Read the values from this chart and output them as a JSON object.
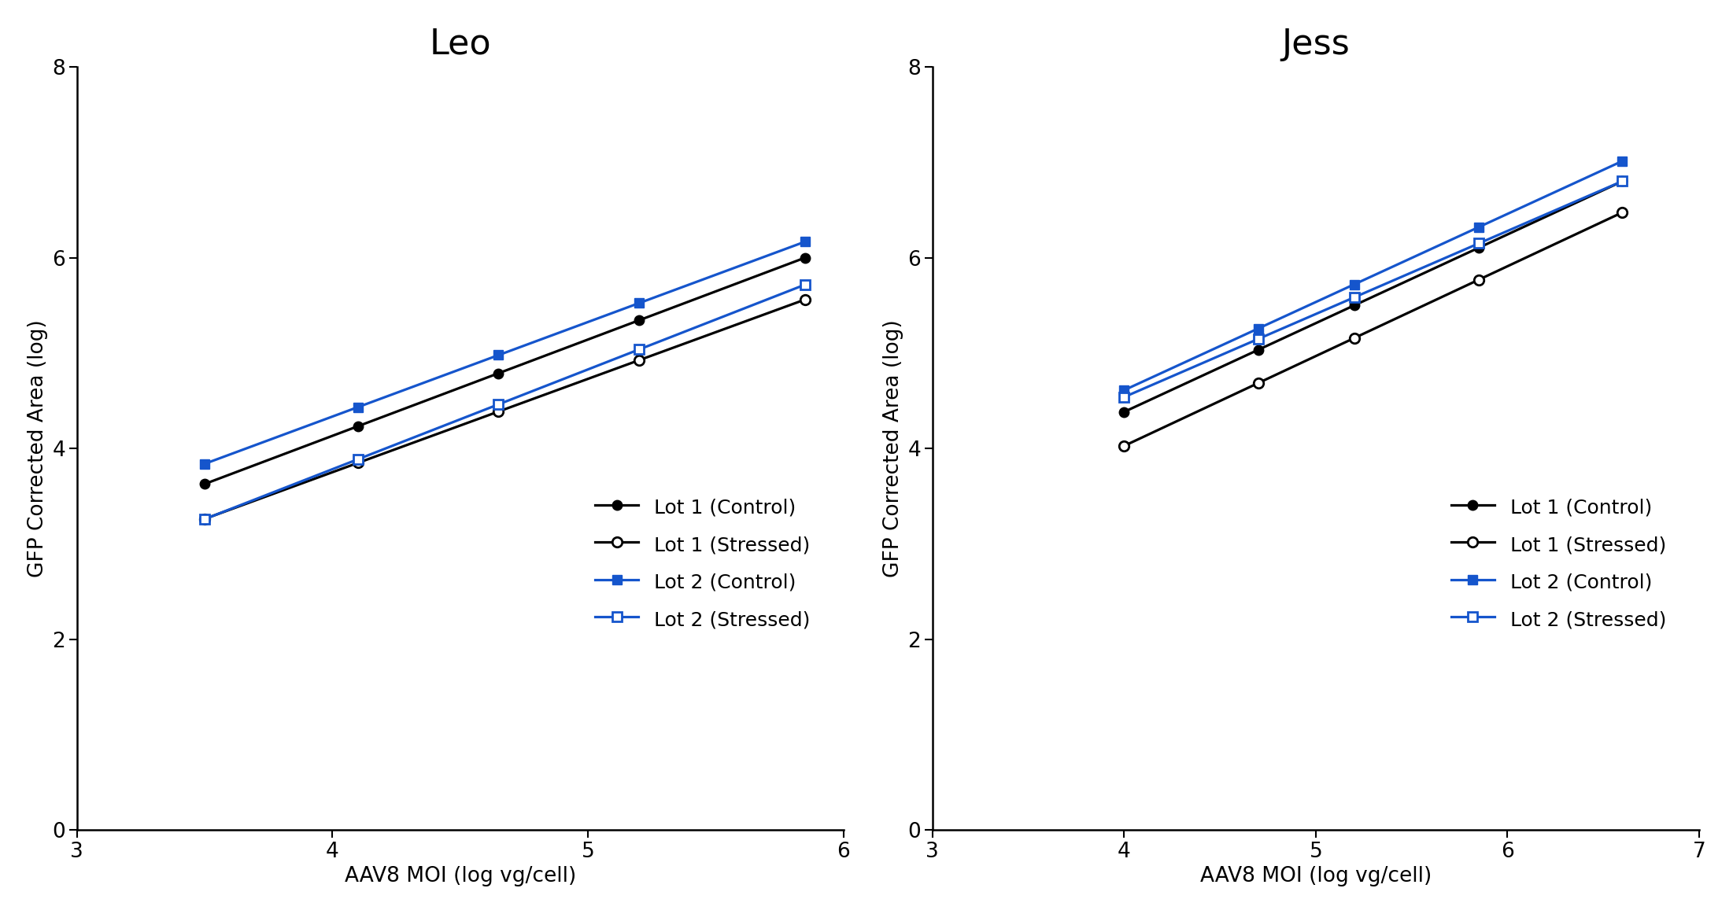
{
  "leo": {
    "title": "Leo",
    "xlim": [
      3,
      6
    ],
    "ylim": [
      0,
      8
    ],
    "xticks": [
      3,
      4,
      5,
      6
    ],
    "yticks": [
      0,
      2,
      4,
      6,
      8
    ],
    "lot1_control": {
      "x": [
        3.5,
        4.1,
        4.65,
        5.2,
        5.85
      ],
      "y": [
        3.6,
        4.25,
        4.82,
        5.35,
        5.98
      ]
    },
    "lot1_stressed": {
      "x": [
        3.5,
        4.1,
        4.65,
        5.2,
        5.85
      ],
      "y": [
        3.28,
        3.83,
        4.38,
        4.93,
        5.57
      ]
    },
    "lot2_control": {
      "x": [
        3.5,
        4.1,
        4.65,
        5.2,
        5.85
      ],
      "y": [
        3.85,
        4.43,
        4.97,
        5.52,
        6.18
      ]
    },
    "lot2_stressed": {
      "x": [
        3.5,
        4.1,
        4.65,
        5.2,
        5.85
      ],
      "y": [
        3.25,
        3.9,
        4.47,
        5.03,
        5.72
      ]
    }
  },
  "jess": {
    "title": "Jess",
    "xlim": [
      3,
      7
    ],
    "ylim": [
      0,
      8
    ],
    "xticks": [
      3,
      4,
      5,
      6,
      7
    ],
    "yticks": [
      0,
      2,
      4,
      6,
      8
    ],
    "lot1_control": {
      "x": [
        4.0,
        4.7,
        5.2,
        5.85,
        6.6
      ],
      "y": [
        4.43,
        4.88,
        5.55,
        6.25,
        6.72
      ]
    },
    "lot1_stressed": {
      "x": [
        4.0,
        4.7,
        5.2,
        5.85,
        6.6
      ],
      "y": [
        4.02,
        4.65,
        5.18,
        5.85,
        6.42
      ]
    },
    "lot2_control": {
      "x": [
        4.0,
        4.7,
        5.2,
        5.85,
        6.6
      ],
      "y": [
        4.52,
        5.2,
        5.92,
        6.42,
        6.87
      ]
    },
    "lot2_stressed": {
      "x": [
        4.0,
        4.7,
        5.2,
        5.85,
        6.6
      ],
      "y": [
        4.52,
        5.05,
        5.72,
        6.22,
        6.72
      ]
    }
  },
  "colors": {
    "black": "#000000",
    "blue": "#1555cc"
  },
  "xlabel": "AAV8 MOI (log vg/cell)",
  "ylabel": "GFP Corrected Area (log)",
  "legend_labels": [
    "Lot 1 (Control)",
    "Lot 1 (Stressed)",
    "Lot 2 (Control)",
    "Lot 2 (Stressed)"
  ],
  "markersize": 9,
  "linewidth": 2.3,
  "title_fontsize": 32,
  "label_fontsize": 19,
  "tick_fontsize": 19,
  "legend_fontsize": 18
}
